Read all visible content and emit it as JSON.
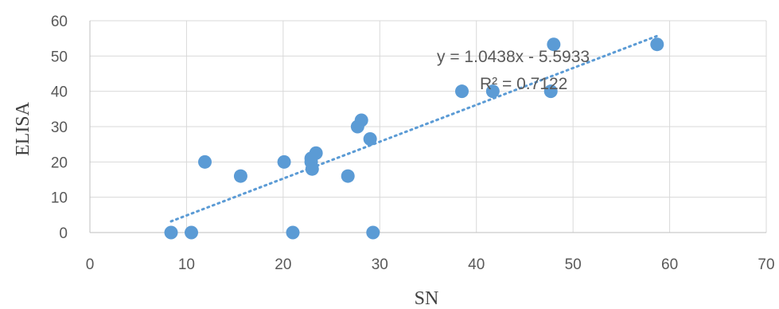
{
  "chart_data": {
    "type": "scatter",
    "xlabel": "SN",
    "ylabel": "ELISA",
    "xlim": [
      0,
      70
    ],
    "ylim": [
      0,
      60
    ],
    "x_ticks": [
      "0",
      "10",
      "20",
      "30",
      "40",
      "50",
      "60",
      "70"
    ],
    "y_ticks": [
      "0",
      "10",
      "20",
      "30",
      "40",
      "50",
      "60"
    ],
    "x_tick_values": [
      0,
      10,
      20,
      30,
      40,
      50,
      60,
      70
    ],
    "y_tick_values": [
      0,
      10,
      20,
      30,
      40,
      50,
      60
    ],
    "grid": true,
    "legend": "none",
    "colors": {
      "marker": "#5b9bd5",
      "trendline": "#5b9bd5"
    },
    "points": [
      {
        "x": 8.4,
        "y": 0
      },
      {
        "x": 10.5,
        "y": 0
      },
      {
        "x": 11.9,
        "y": 20
      },
      {
        "x": 15.6,
        "y": 16
      },
      {
        "x": 20.1,
        "y": 20
      },
      {
        "x": 21.0,
        "y": 0
      },
      {
        "x": 22.9,
        "y": 21
      },
      {
        "x": 22.9,
        "y": 20
      },
      {
        "x": 23.0,
        "y": 18
      },
      {
        "x": 23.4,
        "y": 22.5
      },
      {
        "x": 26.7,
        "y": 16
      },
      {
        "x": 27.7,
        "y": 30
      },
      {
        "x": 28.1,
        "y": 31.8
      },
      {
        "x": 29.0,
        "y": 26.5
      },
      {
        "x": 29.3,
        "y": 0
      },
      {
        "x": 38.5,
        "y": 40
      },
      {
        "x": 41.7,
        "y": 40
      },
      {
        "x": 47.7,
        "y": 40
      },
      {
        "x": 48.0,
        "y": 53.3
      },
      {
        "x": 58.7,
        "y": 53.3
      }
    ],
    "trendline": {
      "type": "linear",
      "slope": 1.0438,
      "intercept": -5.5933,
      "x_range": [
        8.4,
        58.7
      ],
      "equation": "y = 1.0438x - 5.5933",
      "r_squared": "R² = 0.7122"
    }
  }
}
